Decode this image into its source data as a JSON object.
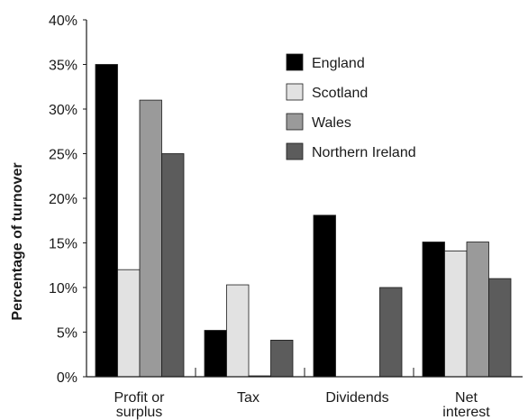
{
  "chart_data": {
    "type": "bar",
    "title": "",
    "xlabel": "",
    "ylabel": "Percentage of turnover",
    "ylim": [
      0,
      40
    ],
    "yticks": [
      "0%",
      "5%",
      "10%",
      "15%",
      "20%",
      "25%",
      "30%",
      "35%",
      "40%"
    ],
    "categories": [
      [
        "Profit or",
        "surplus"
      ],
      [
        "Tax"
      ],
      [
        "Dividends"
      ],
      [
        "Net",
        "interest"
      ]
    ],
    "series": [
      {
        "name": "England",
        "color": "#000000",
        "values": [
          35,
          5.2,
          18.1,
          15.1
        ]
      },
      {
        "name": "Scotland",
        "color": "#e2e2e2",
        "values": [
          12,
          10.3,
          0,
          14.1
        ]
      },
      {
        "name": "Wales",
        "color": "#9a9a9a",
        "values": [
          31,
          0.1,
          0,
          15.1
        ]
      },
      {
        "name": "Northern Ireland",
        "color": "#5c5c5c",
        "values": [
          25,
          4.1,
          10,
          11
        ]
      }
    ],
    "grid": false,
    "legend": "top-right"
  }
}
